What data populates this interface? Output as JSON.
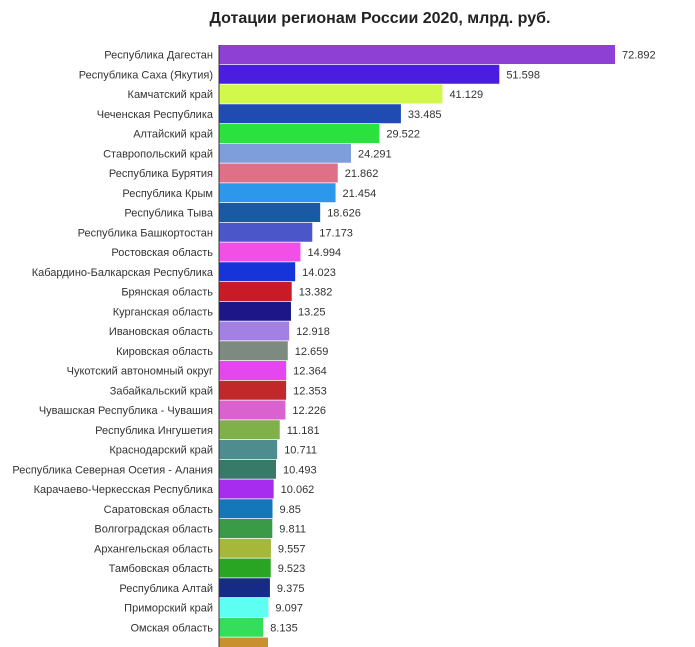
{
  "chart_data": {
    "type": "bar",
    "orientation": "horizontal",
    "title": "Дотации регионам России 2020, млрд. руб.",
    "xlabel": "",
    "ylabel": "",
    "xlim": [
      0,
      72.892
    ],
    "grid": false,
    "legend": "none",
    "categories": [
      "Республика Дагестан",
      "Республика Саха (Якутия)",
      "Камчатский край",
      "Чеченская Республика",
      "Алтайский край",
      "Ставропольский край",
      "Республика Бурятия",
      "Республика Крым",
      "Республика Тыва",
      "Республика Башкортостан",
      "Ростовская область",
      "Кабардино-Балкарская Республика",
      "Брянская область",
      "Курганская область",
      "Ивановская область",
      "Кировская область",
      "Чукотский автономный округ",
      "Забайкальский край",
      "Чувашская Республика - Чувашия",
      "Республика Ингушетия",
      "Краснодарский край",
      "Республика Северная Осетия - Алания",
      "Карачаево-Черкесская Республика",
      "Саратовская область",
      "Волгоградская область",
      "Архангельская область",
      "Тамбовская область",
      "Республика Алтай",
      "Приморский край",
      "Омская область"
    ],
    "values": [
      72.892,
      51.598,
      41.129,
      33.485,
      29.522,
      24.291,
      21.862,
      21.454,
      18.626,
      17.173,
      14.994,
      14.023,
      13.382,
      13.25,
      12.918,
      12.659,
      12.364,
      12.353,
      12.226,
      11.181,
      10.711,
      10.493,
      10.062,
      9.85,
      9.811,
      9.557,
      9.523,
      9.375,
      9.097,
      8.135
    ],
    "value_labels": [
      "72.892",
      "51.598",
      "41.129",
      "33.485",
      "29.522",
      "24.291",
      "21.862",
      "21.454",
      "18.626",
      "17.173",
      "14.994",
      "14.023",
      "13.382",
      "13.25",
      "12.918",
      "12.659",
      "12.364",
      "12.353",
      "12.226",
      "11.181",
      "10.711",
      "10.493",
      "10.062",
      "9.85",
      "9.811",
      "9.557",
      "9.523",
      "9.375",
      "9.097",
      "8.135"
    ],
    "colors": [
      "#8e3fd4",
      "#4a1de0",
      "#d2f84c",
      "#1f4bb3",
      "#29e23d",
      "#7d9ddb",
      "#e07088",
      "#2d97ec",
      "#1a59a4",
      "#4b56c8",
      "#f24fe6",
      "#1634d7",
      "#c91b25",
      "#1d1689",
      "#a380e3",
      "#7c8a80",
      "#e447ee",
      "#c0282a",
      "#d962cf",
      "#7fb04a",
      "#4f8c90",
      "#377a68",
      "#a82bf0",
      "#1477b7",
      "#3a9a48",
      "#a6b739",
      "#2aa523",
      "#162b86",
      "#5efff3",
      "#34de5c"
    ],
    "partial_bar_color": "#c8902e"
  }
}
